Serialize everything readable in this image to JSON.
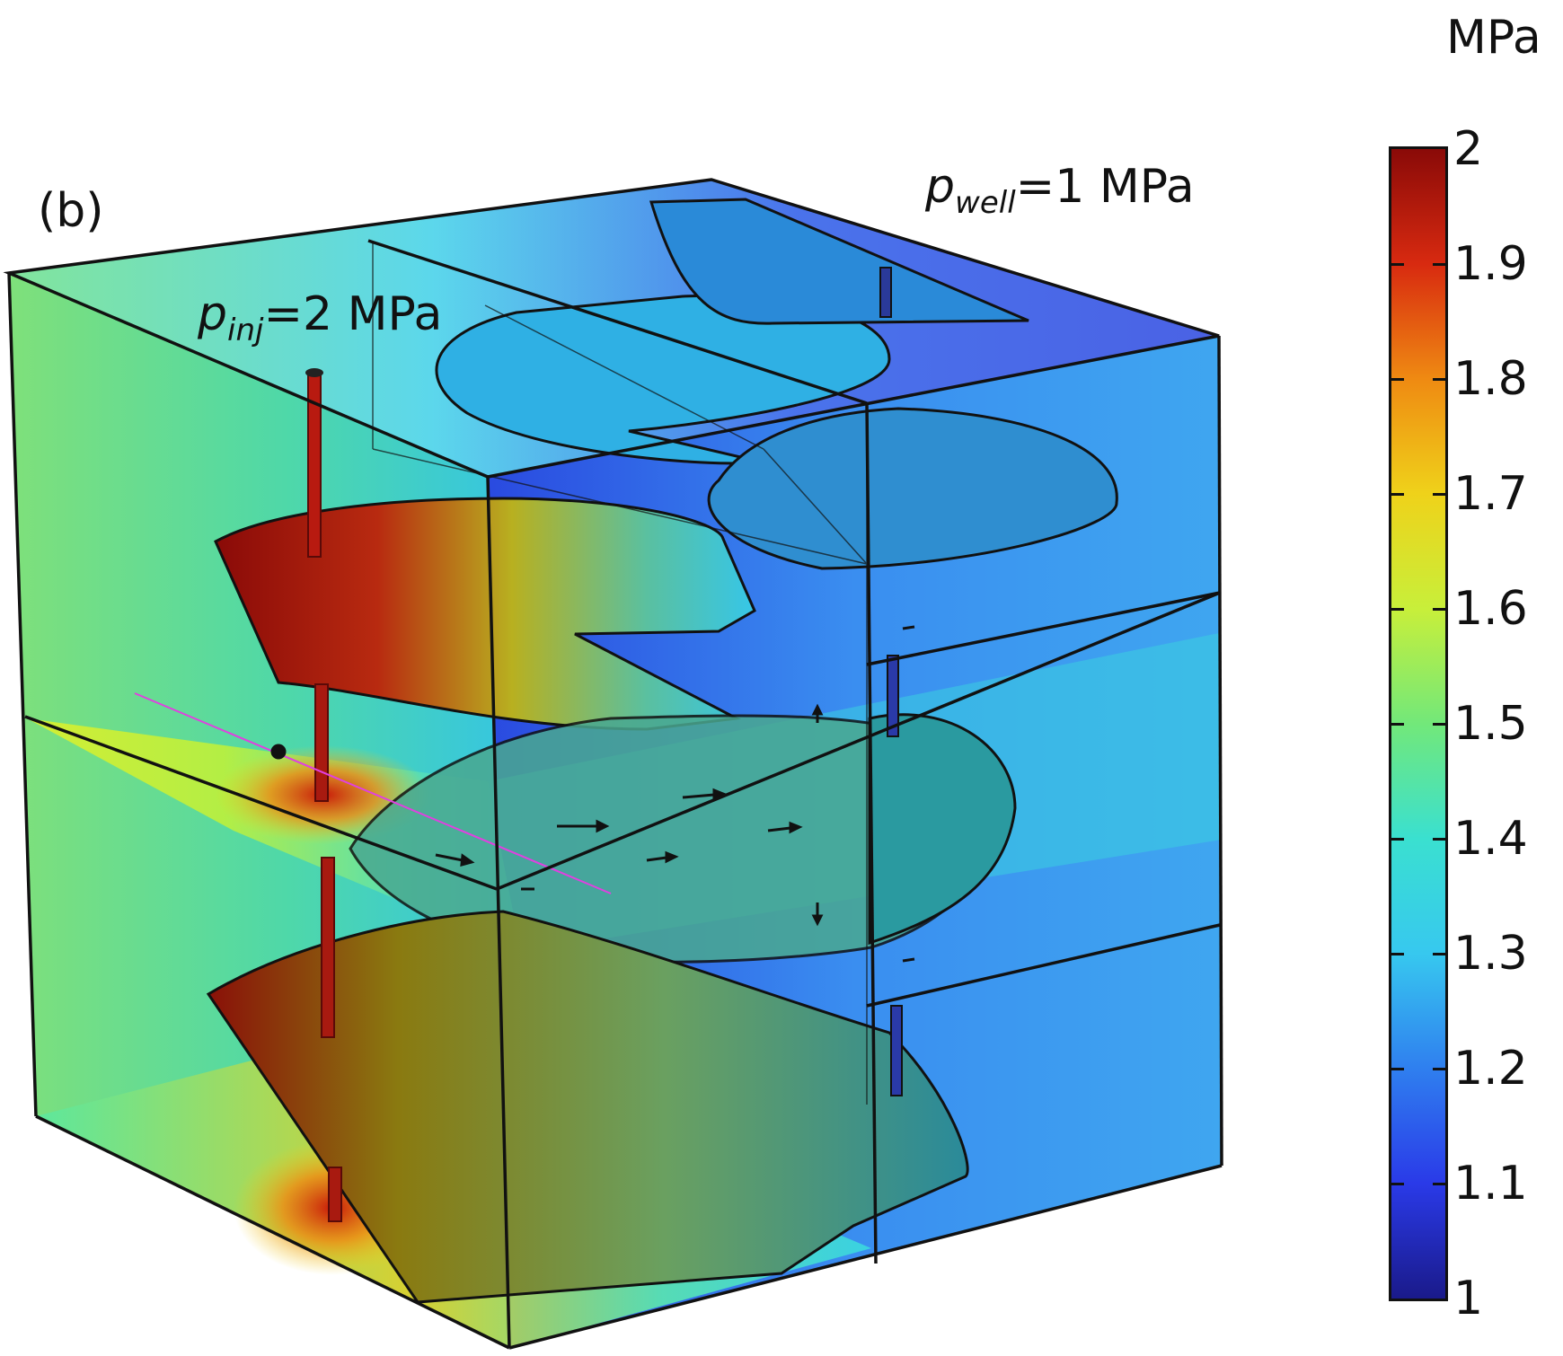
{
  "panel_label": "(b)",
  "injection": {
    "symbol": "p",
    "subscript": "inj",
    "text": "=2 MPa"
  },
  "well": {
    "symbol": "p",
    "subscript": "well",
    "text": "=1 MPa"
  },
  "colorbar": {
    "unit": "MPa",
    "min": 1,
    "max": 2,
    "ticks": [
      "2",
      "1.9",
      "1.8",
      "1.7",
      "1.6",
      "1.5",
      "1.4",
      "1.3",
      "1.2",
      "1.1",
      "1"
    ],
    "tick_values": [
      2,
      1.9,
      1.8,
      1.7,
      1.6,
      1.5,
      1.4,
      1.3,
      1.2,
      1.1,
      1
    ],
    "colormap": [
      "#1a1a8a",
      "#2a3ae8",
      "#2f7fef",
      "#37c8ef",
      "#3ae0d0",
      "#72e87a",
      "#c8ef3a",
      "#efd21a",
      "#ef8a12",
      "#d82a10",
      "#8a0a08"
    ]
  }
}
